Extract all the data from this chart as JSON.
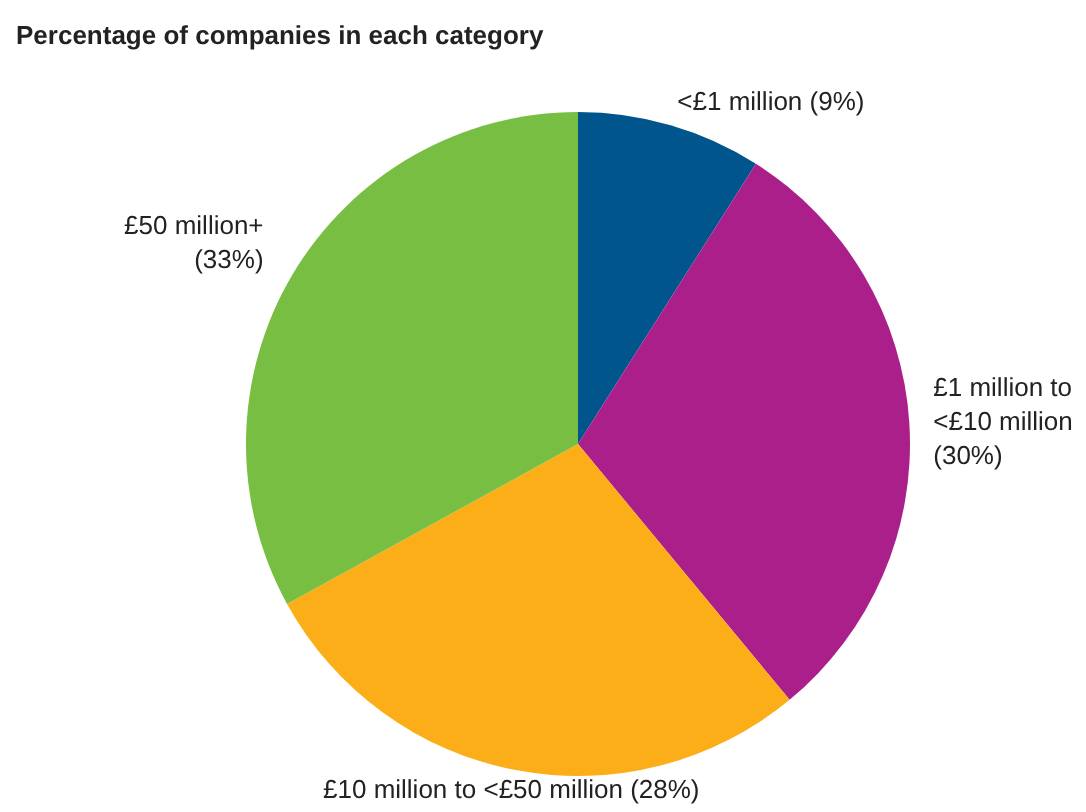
{
  "chart_data": {
    "type": "pie",
    "title": "Percentage of companies in each category",
    "categories": [
      "<£1 million",
      "£1 million to <£10 million",
      "£10 million to <£50 million",
      "£50 million+"
    ],
    "values": [
      9,
      30,
      28,
      33
    ],
    "value_labels": [
      "(9%)",
      "(30%)",
      "(28%)",
      "(33%)"
    ],
    "colors": [
      "#00558c",
      "#ab1f8a",
      "#fbae17",
      "#78be43"
    ]
  }
}
